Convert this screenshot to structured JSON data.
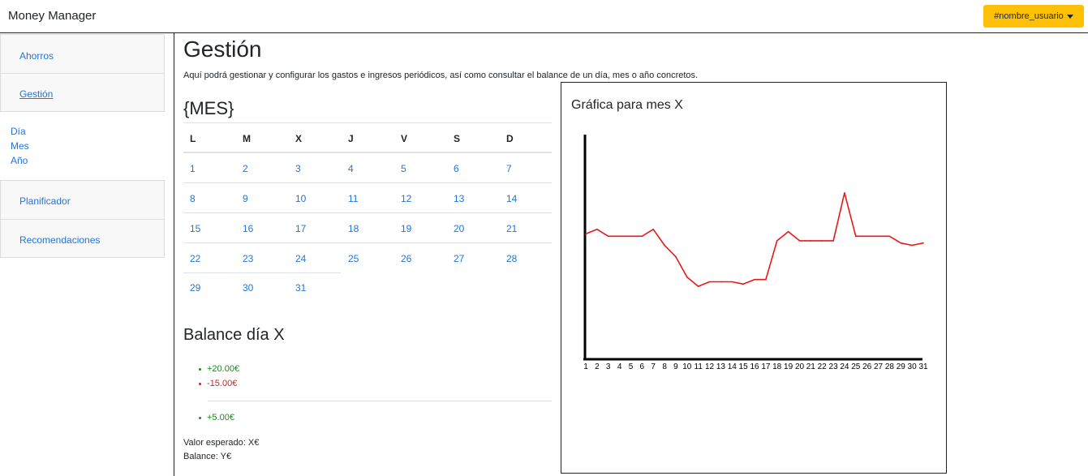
{
  "navbar": {
    "brand": "Money Manager",
    "user_label": "#nombre_usuario"
  },
  "sidebar": {
    "items": [
      {
        "label": "Ahorros"
      },
      {
        "label": "Gestión"
      },
      {
        "label": "Planificador"
      },
      {
        "label": "Recomendaciones"
      }
    ],
    "sub_items": [
      {
        "label": "Día"
      },
      {
        "label": "Mes"
      },
      {
        "label": "Año"
      }
    ]
  },
  "main": {
    "title": "Gestión",
    "intro": "Aquí podrá gestionar y configurar los gastos e ingresos periódicos, así como consultar el balance de un día, mes o año concretos."
  },
  "calendar": {
    "month_title": "{MES}",
    "weekdays": [
      "L",
      "M",
      "X",
      "J",
      "V",
      "S",
      "D"
    ],
    "weeks": [
      [
        "1",
        "2",
        "3",
        "4",
        "5",
        "6",
        "7"
      ],
      [
        "8",
        "9",
        "10",
        "11",
        "12",
        "13",
        "14"
      ],
      [
        "15",
        "16",
        "17",
        "18",
        "19",
        "20",
        "21"
      ],
      [
        "22",
        "23",
        "24",
        "25",
        "26",
        "27",
        "28"
      ],
      [
        "29",
        "30",
        "31"
      ]
    ]
  },
  "balance": {
    "title": "Balance día X",
    "entries": [
      "+20.00€",
      "-15.00€"
    ],
    "total": "+5.00€",
    "expected": "Valor esperado: X€",
    "balance": "Balance: Y€",
    "colors": {
      "positive": "#1c8a1c",
      "negative": "#e01b1b"
    }
  },
  "chart_data": {
    "type": "line",
    "title": "Gráfica para mes X",
    "x": [
      1,
      2,
      3,
      4,
      5,
      6,
      7,
      8,
      9,
      10,
      11,
      12,
      13,
      14,
      15,
      16,
      17,
      18,
      19,
      20,
      21,
      22,
      23,
      24,
      25,
      26,
      27,
      28,
      29,
      30,
      31
    ],
    "categories": [
      "1",
      "2",
      "3",
      "4",
      "5",
      "6",
      "7",
      "8",
      "9",
      "10",
      "11",
      "12",
      "13",
      "14",
      "15",
      "16",
      "17",
      "18",
      "19",
      "20",
      "21",
      "22",
      "23",
      "24",
      "25",
      "26",
      "27",
      "28",
      "29",
      "30",
      "31"
    ],
    "series": [
      {
        "values": [
          55,
          57,
          54,
          54,
          54,
          54,
          57,
          50,
          45,
          36,
          32,
          34,
          34,
          34,
          33,
          35,
          35,
          52,
          56,
          52,
          52,
          52,
          52,
          73,
          54,
          54,
          54,
          54,
          51,
          50,
          51
        ]
      }
    ],
    "ylim": [
      0,
      100
    ],
    "line_color": "#e61919",
    "grid": false
  }
}
